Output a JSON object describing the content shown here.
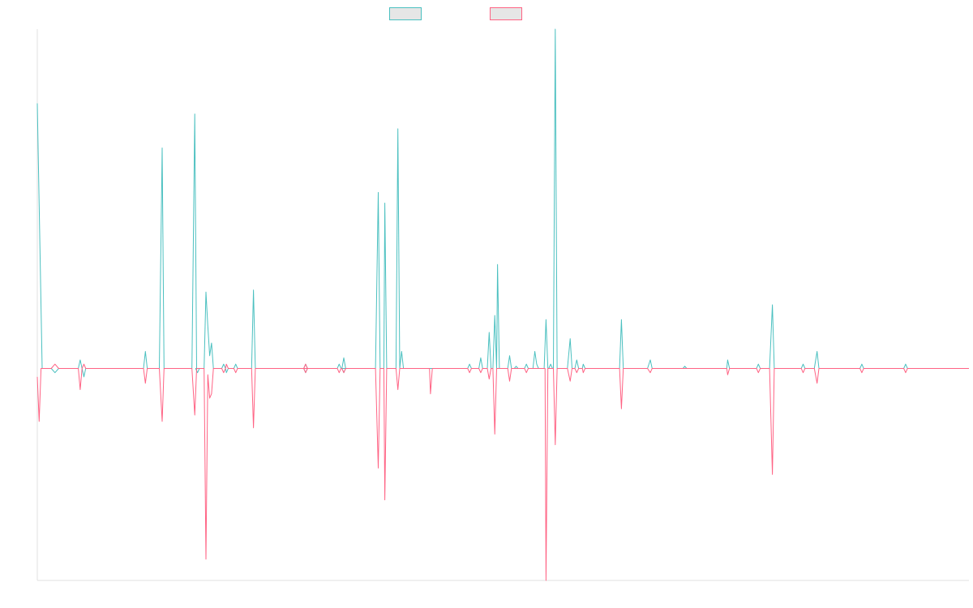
{
  "chart_data": {
    "type": "line",
    "title": "",
    "xlabel": "",
    "ylabel": "",
    "grid": false,
    "legend": "top-center",
    "ylim": [
      -100,
      160
    ],
    "series": [
      {
        "name": "",
        "color": "#4bc0c0",
        "points": [
          [
            0,
            125
          ],
          [
            0.0052,
            0
          ],
          [
            0.01,
            0
          ],
          [
            0.015,
            0
          ],
          [
            0.019,
            -2
          ],
          [
            0.023,
            0
          ],
          [
            0.044,
            0
          ],
          [
            0.046,
            4
          ],
          [
            0.048,
            0
          ],
          [
            0.05,
            -4
          ],
          [
            0.052,
            0
          ],
          [
            0.114,
            0
          ],
          [
            0.116,
            8
          ],
          [
            0.118,
            0
          ],
          [
            0.131,
            0
          ],
          [
            0.134,
            104
          ],
          [
            0.136,
            0
          ],
          [
            0.166,
            0
          ],
          [
            0.169,
            120
          ],
          [
            0.171,
            0
          ],
          [
            0.17,
            0
          ],
          [
            0.172,
            -2
          ],
          [
            0.174,
            0
          ],
          [
            0.179,
            0
          ],
          [
            0.181,
            36
          ],
          [
            0.183,
            20
          ],
          [
            0.185,
            6
          ],
          [
            0.187,
            12
          ],
          [
            0.189,
            0
          ],
          [
            0.198,
            0
          ],
          [
            0.2,
            2
          ],
          [
            0.202,
            0
          ],
          [
            0.203,
            -2
          ],
          [
            0.205,
            0
          ],
          [
            0.211,
            0
          ],
          [
            0.213,
            2
          ],
          [
            0.215,
            0
          ],
          [
            0.23,
            0
          ],
          [
            0.232,
            37
          ],
          [
            0.234,
            0
          ],
          [
            0.286,
            0
          ],
          [
            0.288,
            2
          ],
          [
            0.29,
            0
          ],
          [
            0.288,
            -2
          ],
          [
            0.286,
            0
          ],
          [
            0.322,
            0
          ],
          [
            0.324,
            2
          ],
          [
            0.326,
            0
          ],
          [
            0.327,
            0
          ],
          [
            0.329,
            5
          ],
          [
            0.331,
            0
          ],
          [
            0.329,
            -2
          ],
          [
            0.327,
            0
          ],
          [
            0.363,
            0
          ],
          [
            0.366,
            83
          ],
          [
            0.368,
            0
          ],
          [
            0.372,
            0
          ],
          [
            0.373,
            78
          ],
          [
            0.375,
            0
          ],
          [
            0.385,
            0
          ],
          [
            0.387,
            113
          ],
          [
            0.389,
            0
          ],
          [
            0.391,
            8
          ],
          [
            0.393,
            0
          ],
          [
            0.462,
            0
          ],
          [
            0.464,
            2
          ],
          [
            0.466,
            0
          ],
          [
            0.474,
            0
          ],
          [
            0.476,
            5
          ],
          [
            0.478,
            0
          ],
          [
            0.483,
            0
          ],
          [
            0.485,
            17
          ],
          [
            0.487,
            0
          ],
          [
            0.489,
            0
          ],
          [
            0.491,
            25
          ],
          [
            0.493,
            0
          ],
          [
            0.493,
            0
          ],
          [
            0.494,
            49
          ],
          [
            0.496,
            0
          ],
          [
            0.505,
            0
          ],
          [
            0.507,
            6
          ],
          [
            0.509,
            0
          ],
          [
            0.512,
            0
          ],
          [
            0.514,
            1
          ],
          [
            0.516,
            0
          ],
          [
            0.523,
            0
          ],
          [
            0.525,
            2
          ],
          [
            0.527,
            0
          ],
          [
            0.532,
            0
          ],
          [
            0.534,
            8
          ],
          [
            0.536,
            2
          ],
          [
            0.538,
            0
          ],
          [
            0.544,
            0
          ],
          [
            0.546,
            23
          ],
          [
            0.548,
            0
          ],
          [
            0.549,
            0
          ],
          [
            0.551,
            2
          ],
          [
            0.553,
            0
          ],
          [
            0.554,
            0
          ],
          [
            0.556,
            160
          ],
          [
            0.558,
            0
          ],
          [
            0.569,
            0
          ],
          [
            0.572,
            14
          ],
          [
            0.574,
            0
          ],
          [
            0.577,
            0
          ],
          [
            0.579,
            4
          ],
          [
            0.581,
            0
          ],
          [
            0.585,
            0
          ],
          [
            0.586,
            2
          ],
          [
            0.588,
            0
          ],
          [
            0.625,
            0
          ],
          [
            0.627,
            23
          ],
          [
            0.629,
            0
          ],
          [
            0.655,
            0
          ],
          [
            0.658,
            4
          ],
          [
            0.66,
            0
          ],
          [
            0.693,
            0
          ],
          [
            0.695,
            1
          ],
          [
            0.697,
            0
          ],
          [
            0.74,
            0
          ],
          [
            0.741,
            4
          ],
          [
            0.743,
            0
          ],
          [
            0.772,
            0
          ],
          [
            0.774,
            2
          ],
          [
            0.776,
            0
          ],
          [
            0.786,
            0
          ],
          [
            0.789,
            30
          ],
          [
            0.791,
            0
          ],
          [
            0.82,
            0
          ],
          [
            0.822,
            2
          ],
          [
            0.824,
            0
          ],
          [
            0.834,
            0
          ],
          [
            0.837,
            8
          ],
          [
            0.839,
            0
          ],
          [
            0.883,
            0
          ],
          [
            0.885,
            2
          ],
          [
            0.887,
            0
          ],
          [
            0.93,
            0
          ],
          [
            0.932,
            2
          ],
          [
            0.934,
            0
          ],
          [
            1,
            0
          ]
        ]
      },
      {
        "name": "",
        "color": "#ff6384",
        "points": [
          [
            0,
            -4
          ],
          [
            0.002,
            -25
          ],
          [
            0.004,
            0
          ],
          [
            0.015,
            0
          ],
          [
            0.019,
            2
          ],
          [
            0.023,
            0
          ],
          [
            0.044,
            0
          ],
          [
            0.046,
            -10
          ],
          [
            0.048,
            0
          ],
          [
            0.05,
            2
          ],
          [
            0.052,
            0
          ],
          [
            0.114,
            0
          ],
          [
            0.116,
            -7
          ],
          [
            0.118,
            0
          ],
          [
            0.131,
            0
          ],
          [
            0.134,
            -25
          ],
          [
            0.136,
            0
          ],
          [
            0.166,
            0
          ],
          [
            0.169,
            -22
          ],
          [
            0.171,
            0
          ],
          [
            0.179,
            0
          ],
          [
            0.181,
            -90
          ],
          [
            0.183,
            -3
          ],
          [
            0.185,
            -14
          ],
          [
            0.187,
            -12
          ],
          [
            0.189,
            0
          ],
          [
            0.198,
            0
          ],
          [
            0.2,
            -2
          ],
          [
            0.202,
            0
          ],
          [
            0.203,
            2
          ],
          [
            0.205,
            0
          ],
          [
            0.211,
            0
          ],
          [
            0.213,
            -2
          ],
          [
            0.215,
            0
          ],
          [
            0.23,
            0
          ],
          [
            0.232,
            -28
          ],
          [
            0.234,
            0
          ],
          [
            0.286,
            0
          ],
          [
            0.288,
            -2
          ],
          [
            0.29,
            0
          ],
          [
            0.288,
            2
          ],
          [
            0.286,
            0
          ],
          [
            0.322,
            0
          ],
          [
            0.324,
            -2
          ],
          [
            0.326,
            0
          ],
          [
            0.327,
            0
          ],
          [
            0.329,
            -2
          ],
          [
            0.331,
            0
          ],
          [
            0.363,
            0
          ],
          [
            0.366,
            -47
          ],
          [
            0.368,
            0
          ],
          [
            0.372,
            0
          ],
          [
            0.373,
            -62
          ],
          [
            0.375,
            0
          ],
          [
            0.385,
            0
          ],
          [
            0.387,
            -10
          ],
          [
            0.389,
            0
          ],
          [
            0.421,
            0
          ],
          [
            0.422,
            -12
          ],
          [
            0.424,
            0
          ],
          [
            0.462,
            0
          ],
          [
            0.464,
            -2
          ],
          [
            0.466,
            0
          ],
          [
            0.474,
            0
          ],
          [
            0.476,
            -2
          ],
          [
            0.478,
            0
          ],
          [
            0.483,
            0
          ],
          [
            0.485,
            -5
          ],
          [
            0.487,
            0
          ],
          [
            0.489,
            0
          ],
          [
            0.491,
            -31
          ],
          [
            0.493,
            0
          ],
          [
            0.505,
            0
          ],
          [
            0.507,
            -6
          ],
          [
            0.509,
            0
          ],
          [
            0.523,
            0
          ],
          [
            0.525,
            -2
          ],
          [
            0.527,
            0
          ],
          [
            0.545,
            0
          ],
          [
            0.546,
            -100
          ],
          [
            0.548,
            0
          ],
          [
            0.554,
            0
          ],
          [
            0.556,
            -36
          ],
          [
            0.558,
            0
          ],
          [
            0.569,
            0
          ],
          [
            0.572,
            -6
          ],
          [
            0.574,
            0
          ],
          [
            0.577,
            0
          ],
          [
            0.579,
            -2
          ],
          [
            0.581,
            0
          ],
          [
            0.585,
            0
          ],
          [
            0.586,
            -2
          ],
          [
            0.588,
            0
          ],
          [
            0.625,
            0
          ],
          [
            0.627,
            -19
          ],
          [
            0.629,
            0
          ],
          [
            0.655,
            0
          ],
          [
            0.658,
            -2
          ],
          [
            0.66,
            0
          ],
          [
            0.693,
            0
          ],
          [
            0.695,
            0
          ],
          [
            0.697,
            0
          ],
          [
            0.74,
            0
          ],
          [
            0.741,
            -3
          ],
          [
            0.743,
            0
          ],
          [
            0.772,
            0
          ],
          [
            0.774,
            -2
          ],
          [
            0.776,
            0
          ],
          [
            0.786,
            0
          ],
          [
            0.789,
            -50
          ],
          [
            0.791,
            0
          ],
          [
            0.82,
            0
          ],
          [
            0.822,
            -2
          ],
          [
            0.824,
            0
          ],
          [
            0.834,
            0
          ],
          [
            0.837,
            -7
          ],
          [
            0.839,
            0
          ],
          [
            0.883,
            0
          ],
          [
            0.885,
            -2
          ],
          [
            0.887,
            0
          ],
          [
            0.93,
            0
          ],
          [
            0.932,
            -2
          ],
          [
            0.934,
            0
          ],
          [
            1,
            0
          ]
        ]
      }
    ]
  }
}
